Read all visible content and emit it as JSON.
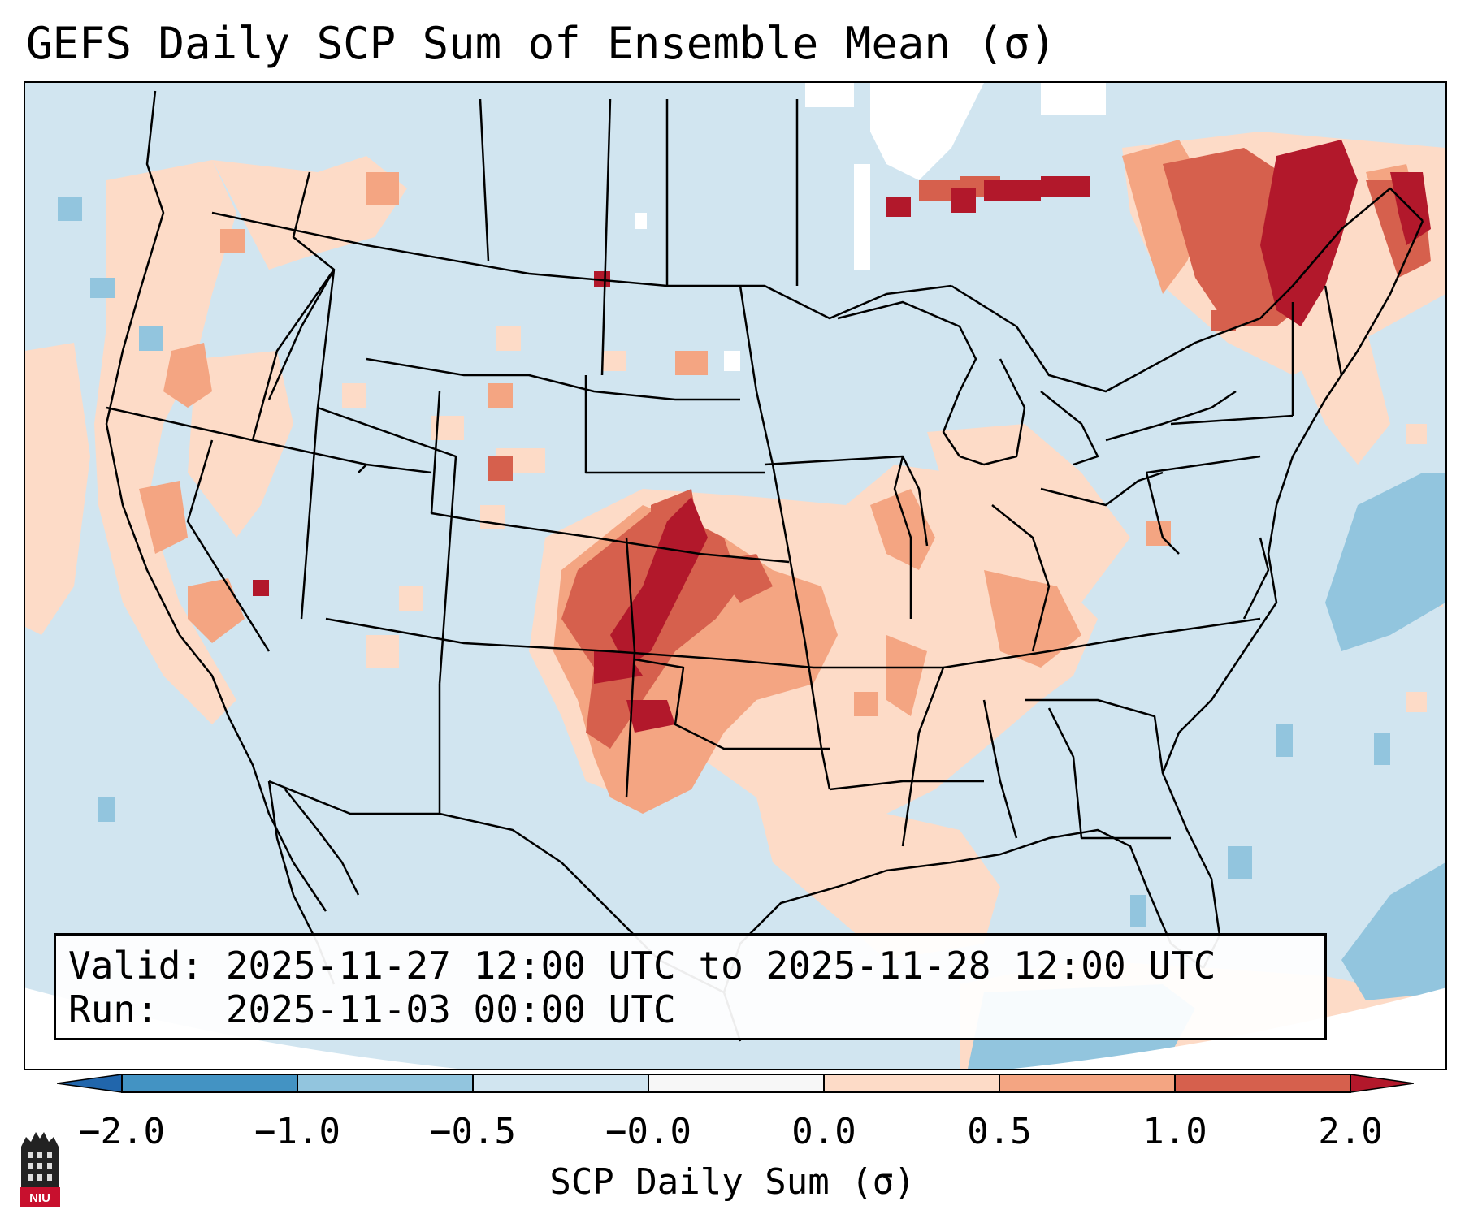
{
  "title": "GEFS Daily SCP Sum of Ensemble Mean (σ)",
  "info": {
    "valid_line": "Valid: 2025-11-27 12:00 UTC to 2025-11-28 12:00 UTC",
    "run_line": "Run:   2025-11-03 00:00 UTC"
  },
  "colorbar": {
    "label": "SCP Daily Sum (σ)",
    "ticks": [
      "−2.0",
      "−1.0",
      "−0.5",
      "−0.0",
      "0.0",
      "0.5",
      "1.0",
      "2.0"
    ],
    "colors": [
      "#4393c3",
      "#92c5de",
      "#d1e5f0",
      "#f7f7f7",
      "#fddbc7",
      "#f4a582",
      "#d6604d",
      "#b2182b"
    ],
    "extend": "both"
  },
  "map": {
    "region": "CONUS",
    "background_color": "#d1e5f0",
    "outline_color": "#000000"
  },
  "logo": {
    "text": "NIU"
  }
}
